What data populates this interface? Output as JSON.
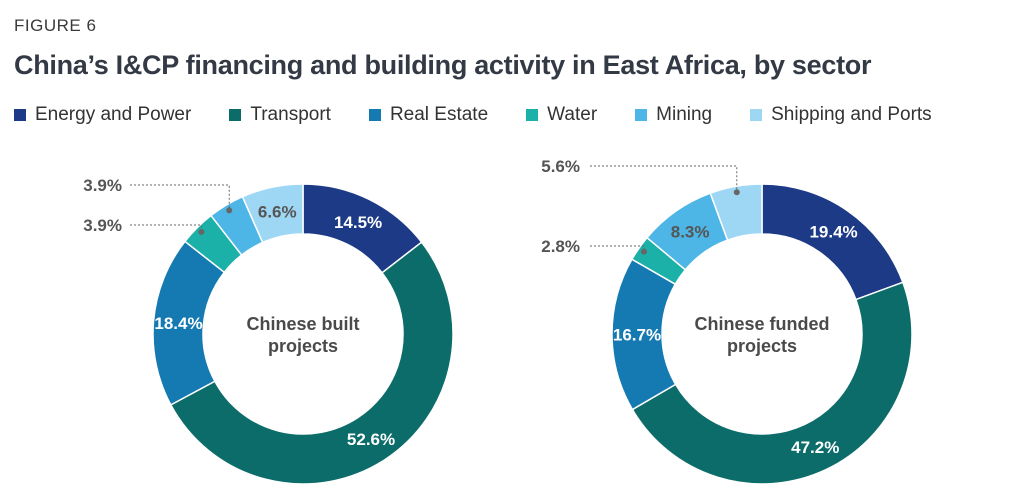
{
  "figure_label": "FIGURE 6",
  "chart_data": [
    {
      "type": "pie",
      "title": "China’s I&CP financing and building activity in East Africa, by sector",
      "center_label": [
        "Chinese built",
        "projects"
      ],
      "categories": [
        "Energy and Power",
        "Transport",
        "Real Estate",
        "Water",
        "Mining",
        "Shipping and Ports"
      ],
      "values": [
        14.5,
        52.6,
        18.4,
        3.9,
        3.9,
        6.6
      ],
      "value_labels": [
        "14.5%",
        "52.6%",
        "18.4%",
        "3.9%",
        "3.9%",
        "6.6%"
      ],
      "colors": [
        "#1c3a85",
        "#0c6c6a",
        "#1579b2",
        "#1bb0a8",
        "#4db6e6",
        "#9ed7f4"
      ],
      "label_colors": [
        "#ffffff",
        "#ffffff",
        "#ffffff",
        "#555555",
        "#555555",
        "#555555"
      ],
      "external_labels": [
        3,
        4
      ]
    },
    {
      "type": "pie",
      "title": "China’s I&CP financing and building activity in East Africa, by sector",
      "center_label": [
        "Chinese funded",
        "projects"
      ],
      "categories": [
        "Energy and Power",
        "Transport",
        "Real Estate",
        "Water",
        "Mining",
        "Shipping and Ports"
      ],
      "values": [
        19.4,
        47.2,
        16.7,
        2.8,
        8.3,
        5.6
      ],
      "value_labels": [
        "19.4%",
        "47.2%",
        "16.7%",
        "2.8%",
        "8.3%",
        "5.6%"
      ],
      "colors": [
        "#1c3a85",
        "#0c6c6a",
        "#1579b2",
        "#1bb0a8",
        "#4db6e6",
        "#9ed7f4"
      ],
      "label_colors": [
        "#ffffff",
        "#ffffff",
        "#ffffff",
        "#555555",
        "#555555",
        "#555555"
      ],
      "external_labels": [
        3,
        5
      ]
    }
  ],
  "legend": [
    {
      "label": "Energy and Power",
      "color": "#1c3a85"
    },
    {
      "label": "Transport",
      "color": "#0c6c6a"
    },
    {
      "label": "Real Estate",
      "color": "#1579b2"
    },
    {
      "label": "Water",
      "color": "#1bb0a8"
    },
    {
      "label": "Mining",
      "color": "#4db6e6"
    },
    {
      "label": "Shipping and Ports",
      "color": "#9ed7f4"
    }
  ]
}
